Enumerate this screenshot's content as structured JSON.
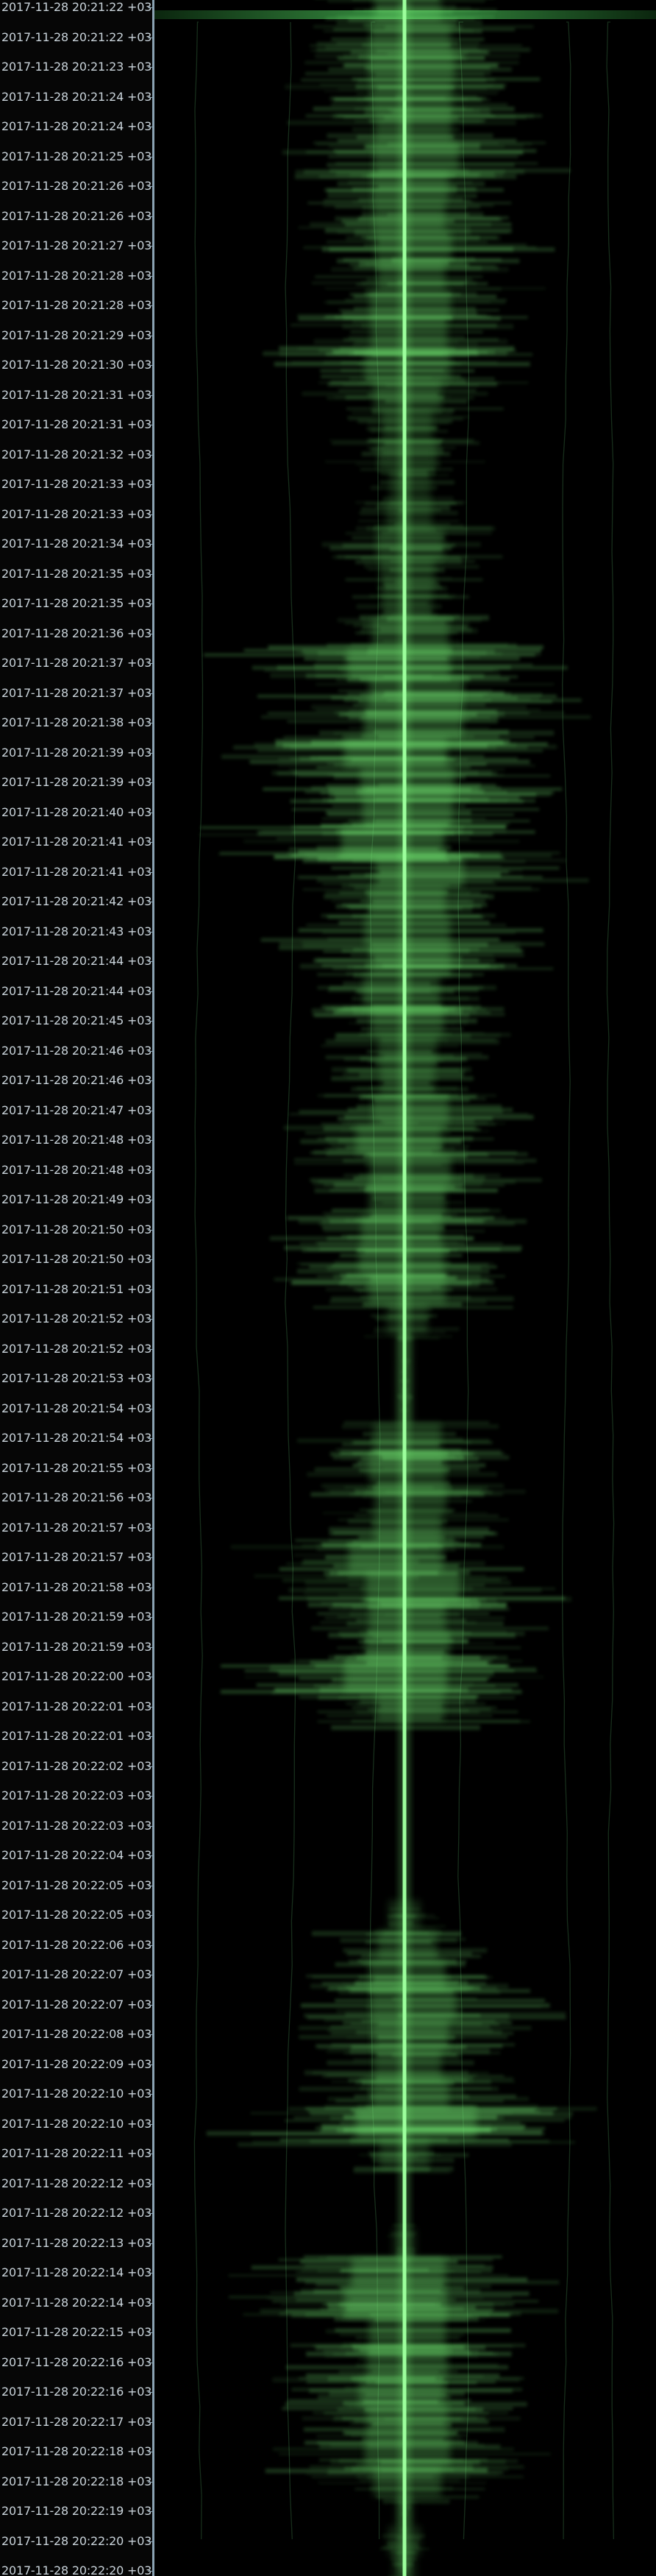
{
  "waterfall": {
    "colors": {
      "background": "#000000",
      "signal": "#6fe06f",
      "carrier": "#9cff9c",
      "axis_line": "#8aa2b2",
      "timestamp_text": "#c9d3da"
    },
    "timestamps": [
      "2017-11-28 20:21:22 +03:00",
      "2017-11-28 20:21:22 +03:00",
      "2017-11-28 20:21:23 +03:00",
      "2017-11-28 20:21:24 +03:00",
      "2017-11-28 20:21:24 +03:00",
      "2017-11-28 20:21:25 +03:00",
      "2017-11-28 20:21:26 +03:00",
      "2017-11-28 20:21:26 +03:00",
      "2017-11-28 20:21:27 +03:00",
      "2017-11-28 20:21:28 +03:00",
      "2017-11-28 20:21:28 +03:00",
      "2017-11-28 20:21:29 +03:00",
      "2017-11-28 20:21:30 +03:00",
      "2017-11-28 20:21:31 +03:00",
      "2017-11-28 20:21:31 +03:00",
      "2017-11-28 20:21:32 +03:00",
      "2017-11-28 20:21:33 +03:00",
      "2017-11-28 20:21:33 +03:00",
      "2017-11-28 20:21:34 +03:00",
      "2017-11-28 20:21:35 +03:00",
      "2017-11-28 20:21:35 +03:00",
      "2017-11-28 20:21:36 +03:00",
      "2017-11-28 20:21:37 +03:00",
      "2017-11-28 20:21:37 +03:00",
      "2017-11-28 20:21:38 +03:00",
      "2017-11-28 20:21:39 +03:00",
      "2017-11-28 20:21:39 +03:00",
      "2017-11-28 20:21:40 +03:00",
      "2017-11-28 20:21:41 +03:00",
      "2017-11-28 20:21:41 +03:00",
      "2017-11-28 20:21:42 +03:00",
      "2017-11-28 20:21:43 +03:00",
      "2017-11-28 20:21:44 +03:00",
      "2017-11-28 20:21:44 +03:00",
      "2017-11-28 20:21:45 +03:00",
      "2017-11-28 20:21:46 +03:00",
      "2017-11-28 20:21:46 +03:00",
      "2017-11-28 20:21:47 +03:00",
      "2017-11-28 20:21:48 +03:00",
      "2017-11-28 20:21:48 +03:00",
      "2017-11-28 20:21:49 +03:00",
      "2017-11-28 20:21:50 +03:00",
      "2017-11-28 20:21:50 +03:00",
      "2017-11-28 20:21:51 +03:00",
      "2017-11-28 20:21:52 +03:00",
      "2017-11-28 20:21:52 +03:00",
      "2017-11-28 20:21:53 +03:00",
      "2017-11-28 20:21:54 +03:00",
      "2017-11-28 20:21:54 +03:00",
      "2017-11-28 20:21:55 +03:00",
      "2017-11-28 20:21:56 +03:00",
      "2017-11-28 20:21:57 +03:00",
      "2017-11-28 20:21:57 +03:00",
      "2017-11-28 20:21:58 +03:00",
      "2017-11-28 20:21:59 +03:00",
      "2017-11-28 20:21:59 +03:00",
      "2017-11-28 20:22:00 +03:00",
      "2017-11-28 20:22:01 +03:00",
      "2017-11-28 20:22:01 +03:00",
      "2017-11-28 20:22:02 +03:00",
      "2017-11-28 20:22:03 +03:00",
      "2017-11-28 20:22:03 +03:00",
      "2017-11-28 20:22:04 +03:00",
      "2017-11-28 20:22:05 +03:00",
      "2017-11-28 20:22:05 +03:00",
      "2017-11-28 20:22:06 +03:00",
      "2017-11-28 20:22:07 +03:00",
      "2017-11-28 20:22:07 +03:00",
      "2017-11-28 20:22:08 +03:00",
      "2017-11-28 20:22:09 +03:00",
      "2017-11-28 20:22:10 +03:00",
      "2017-11-28 20:22:10 +03:00",
      "2017-11-28 20:22:11 +03:00",
      "2017-11-28 20:22:12 +03:00",
      "2017-11-28 20:22:12 +03:00",
      "2017-11-28 20:22:13 +03:00",
      "2017-11-28 20:22:14 +03:00",
      "2017-11-28 20:22:14 +03:00",
      "2017-11-28 20:22:15 +03:00",
      "2017-11-28 20:22:16 +03:00",
      "2017-11-28 20:22:16 +03:00",
      "2017-11-28 20:22:17 +03:00",
      "2017-11-28 20:22:18 +03:00",
      "2017-11-28 20:22:18 +03:00",
      "2017-11-28 20:22:19 +03:00",
      "2017-11-28 20:22:20 +03:00",
      "2017-11-28 20:22:20 +03:00"
    ],
    "signal_bursts": [
      [
        0.6,
        0.05
      ],
      [
        0.75,
        0.1
      ],
      [
        0.8,
        0.12
      ],
      [
        0.75,
        0.12
      ],
      [
        0.7,
        0.15
      ],
      [
        0.8,
        0.2
      ],
      [
        0.7,
        0.1
      ],
      [
        0.65,
        0.08
      ],
      [
        0.7,
        0.15
      ],
      [
        0.6,
        0.12
      ],
      [
        0.75,
        0.1
      ],
      [
        0.7,
        0.08
      ],
      [
        0.8,
        0.05
      ],
      [
        0.6,
        0.05
      ],
      [
        0.4,
        0.05
      ],
      [
        0.5,
        0.05
      ],
      [
        0.3,
        0.1
      ],
      [
        0.35,
        0.08
      ],
      [
        0.6,
        0.1
      ],
      [
        0.45,
        0.05
      ],
      [
        0.4,
        0.05
      ],
      [
        0.7,
        0.1
      ],
      [
        1.0,
        -0.1
      ],
      [
        0.9,
        0.2
      ],
      [
        0.95,
        0.15
      ],
      [
        1.0,
        -0.15
      ],
      [
        0.9,
        0.05
      ],
      [
        0.85,
        0.05
      ],
      [
        1.0,
        -0.2
      ],
      [
        0.85,
        0.25
      ],
      [
        0.7,
        0.05
      ],
      [
        0.8,
        0.05
      ],
      [
        0.75,
        0.1
      ],
      [
        0.7,
        -0.05
      ],
      [
        0.65,
        0.05
      ],
      [
        0.5,
        0.05
      ],
      [
        0.45,
        0.05
      ],
      [
        0.7,
        0.1
      ],
      [
        0.8,
        -0.1
      ],
      [
        0.75,
        0.1
      ],
      [
        0.7,
        0.05
      ],
      [
        0.75,
        -0.05
      ],
      [
        0.8,
        -0.05
      ],
      [
        0.7,
        0.05
      ],
      [
        0.3,
        0.05
      ],
      [
        0.05,
        0.0
      ],
      [
        0.05,
        0.0
      ],
      [
        0.05,
        0.0
      ],
      [
        0.6,
        0.05
      ],
      [
        0.7,
        0.05
      ],
      [
        0.65,
        0.1
      ],
      [
        0.6,
        0.05
      ],
      [
        0.9,
        -0.15
      ],
      [
        0.9,
        0.15
      ],
      [
        0.7,
        0.05
      ],
      [
        0.8,
        0.05
      ],
      [
        1.0,
        -0.15
      ],
      [
        0.6,
        0.1
      ],
      [
        0.0,
        0.0
      ],
      [
        0.0,
        0.0
      ],
      [
        0.0,
        0.0
      ],
      [
        0.0,
        0.0
      ],
      [
        0.0,
        0.0
      ],
      [
        0.0,
        0.0
      ],
      [
        0.2,
        0.0
      ],
      [
        0.5,
        0.05
      ],
      [
        0.7,
        0.05
      ],
      [
        0.8,
        0.15
      ],
      [
        0.7,
        0.1
      ],
      [
        0.6,
        0.05
      ],
      [
        0.7,
        0.1
      ],
      [
        1.2,
        0.2
      ],
      [
        0.4,
        0.0
      ],
      [
        0.0,
        0.0
      ],
      [
        0.0,
        0.0
      ],
      [
        0.1,
        0.0
      ],
      [
        0.9,
        -0.1
      ],
      [
        1.0,
        -0.15
      ],
      [
        0.7,
        0.05
      ],
      [
        0.75,
        0.05
      ],
      [
        0.8,
        -0.05
      ],
      [
        0.75,
        0.05
      ],
      [
        0.8,
        0.05
      ],
      [
        0.6,
        0.05
      ],
      [
        0.05,
        0.0
      ],
      [
        0.2,
        0.0
      ],
      [
        0.1,
        0.0
      ]
    ]
  }
}
